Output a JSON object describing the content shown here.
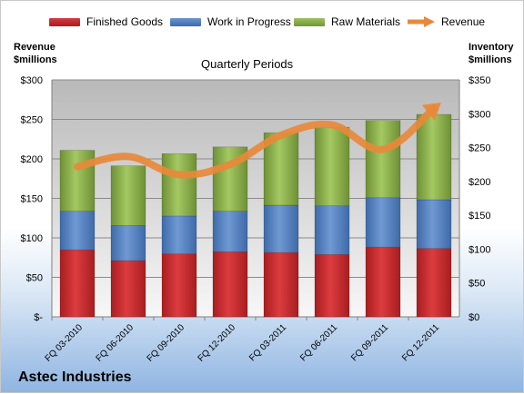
{
  "company": "Astec Industries",
  "legend": [
    {
      "label": "Finished Goods",
      "color": "#c0262a"
    },
    {
      "label": "Work in Progress",
      "color": "#4f7ec2"
    },
    {
      "label": "Raw Materials",
      "color": "#8ab04a"
    },
    {
      "label": "Revenue",
      "color": "#e8893a"
    }
  ],
  "axes": {
    "left_title_line1": "Revenue",
    "left_title_line2": "$millions",
    "right_title_line1": "Inventory",
    "right_title_line2": "$millions",
    "subtitle": "Quarterly Periods"
  },
  "chart_data": {
    "type": "bar",
    "stacked": true,
    "title": "",
    "subtitle": "Quarterly Periods",
    "categories": [
      "FQ 03-2010",
      "FQ 06-2010",
      "FQ 09-2010",
      "FQ 12-2010",
      "FQ 03-2011",
      "FQ 06-2011",
      "FQ 09-2011",
      "FQ 12-2011"
    ],
    "series": [
      {
        "name": "Finished Goods",
        "axis": "right",
        "color": "#c0262a",
        "values": [
          99,
          83,
          93,
          96,
          95,
          92,
          103,
          101
        ]
      },
      {
        "name": "Work in Progress",
        "axis": "right",
        "color": "#4f7ec2",
        "values": [
          57,
          52,
          56,
          60,
          70,
          72,
          73,
          72
        ]
      },
      {
        "name": "Raw Materials",
        "axis": "right",
        "color": "#8ab04a",
        "values": [
          90,
          88,
          92,
          95,
          107,
          116,
          114,
          126
        ]
      },
      {
        "name": "Revenue",
        "type": "line",
        "axis": "left",
        "color": "#e8893a",
        "values": [
          190,
          203,
          180,
          193,
          230,
          243,
          212,
          264
        ]
      }
    ],
    "y_left": {
      "label": "Revenue $millions",
      "min": 0,
      "max": 300,
      "ticks": [
        "$-",
        "$50",
        "$100",
        "$150",
        "$200",
        "$250",
        "$300"
      ],
      "tick_values": [
        0,
        50,
        100,
        150,
        200,
        250,
        300
      ]
    },
    "y_right": {
      "label": "Inventory $millions",
      "min": 0,
      "max": 350,
      "ticks": [
        "$0",
        "$50",
        "$100",
        "$150",
        "$200",
        "$250",
        "$300",
        "$350"
      ],
      "tick_values": [
        0,
        50,
        100,
        150,
        200,
        250,
        300,
        350
      ]
    },
    "grid": true,
    "legend_position": "top"
  }
}
